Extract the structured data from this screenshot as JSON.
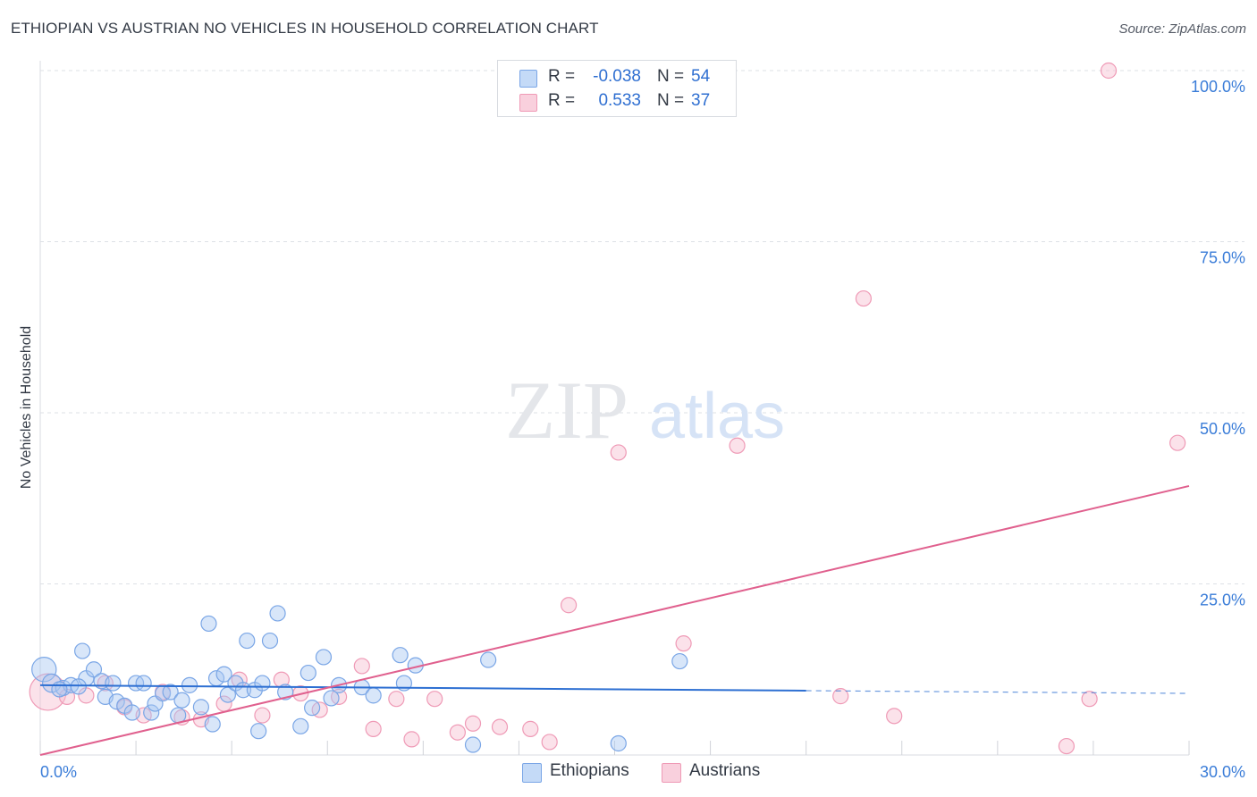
{
  "header": {
    "title": "ETHIOPIAN VS AUSTRIAN NO VEHICLES IN HOUSEHOLD CORRELATION CHART",
    "source": "Source: ZipAtlas.com"
  },
  "watermark": {
    "zip": "ZIP",
    "atlas": "atlas"
  },
  "legend_top": {
    "rows": [
      {
        "r_label": "R =",
        "r_value": "-0.038",
        "n_label": "N =",
        "n_value": "54"
      },
      {
        "r_label": "R =",
        "r_value": "0.533",
        "n_label": "N =",
        "n_value": "37"
      }
    ]
  },
  "legend_bottom": {
    "ethiopians": "Ethiopians",
    "austrians": "Austrians"
  },
  "colors": {
    "blue_fill": "#a9c8f2",
    "blue_stroke": "#7aa6e6",
    "blue_line": "#2d6fd2",
    "pink_fill": "#f6bfd0",
    "pink_stroke": "#ef9ab6",
    "pink_line": "#e0608e",
    "tick_text": "#3b7dd8",
    "grid": "#dde0e6"
  },
  "chart_data": {
    "type": "scatter",
    "title": "ETHIOPIAN VS AUSTRIAN NO VEHICLES IN HOUSEHOLD CORRELATION CHART",
    "xlabel": "",
    "ylabel": "No Vehicles in Household",
    "xlim": [
      0,
      30
    ],
    "ylim": [
      0,
      100
    ],
    "x_tick_labels": [
      "0.0%",
      "30.0%"
    ],
    "y_ticks": [
      25,
      50,
      75,
      100
    ],
    "y_tick_labels": [
      "25.0%",
      "50.0%",
      "75.0%",
      "100.0%"
    ],
    "grid": true,
    "series": [
      {
        "name": "Ethiopians",
        "r": -0.038,
        "n": 54,
        "trend": {
          "x0": 0,
          "y0": 10.2,
          "x1": 20,
          "y1": 9.4,
          "dash_to_x": 30,
          "dash_to_y": 9.0
        },
        "points": [
          [
            0.1,
            12.5,
            1.6
          ],
          [
            0.3,
            10.5,
            1.2
          ],
          [
            0.6,
            9.8,
            1.0
          ],
          [
            0.8,
            10.2,
            1.0
          ],
          [
            1.1,
            15.2,
            1.0
          ],
          [
            1.2,
            11.2,
            1.0
          ],
          [
            1.4,
            12.5,
            1.0
          ],
          [
            1.6,
            10.8,
            1.0
          ],
          [
            1.7,
            8.5,
            1.0
          ],
          [
            1.9,
            10.5,
            1.0
          ],
          [
            2.0,
            7.8,
            1.0
          ],
          [
            2.2,
            7.2,
            1.0
          ],
          [
            2.4,
            6.2,
            1.0
          ],
          [
            2.5,
            10.5,
            1.0
          ],
          [
            2.7,
            10.5,
            1.0
          ],
          [
            2.9,
            6.2,
            1.0
          ],
          [
            3.0,
            7.5,
            1.0
          ],
          [
            3.2,
            9.0,
            1.0
          ],
          [
            3.4,
            9.2,
            1.0
          ],
          [
            3.6,
            5.8,
            1.0
          ],
          [
            3.7,
            8.0,
            1.0
          ],
          [
            3.9,
            10.2,
            1.0
          ],
          [
            4.2,
            7.0,
            1.0
          ],
          [
            4.4,
            19.2,
            1.0
          ],
          [
            4.5,
            4.5,
            1.0
          ],
          [
            4.6,
            11.2,
            1.0
          ],
          [
            4.8,
            11.8,
            1.0
          ],
          [
            4.9,
            8.8,
            1.0
          ],
          [
            5.1,
            10.5,
            1.0
          ],
          [
            5.3,
            9.5,
            1.0
          ],
          [
            5.4,
            16.7,
            1.0
          ],
          [
            5.6,
            9.5,
            1.0
          ],
          [
            5.8,
            10.5,
            1.0
          ],
          [
            5.7,
            3.5,
            1.0
          ],
          [
            6.0,
            16.7,
            1.0
          ],
          [
            6.2,
            20.7,
            1.0
          ],
          [
            6.4,
            9.2,
            1.0
          ],
          [
            6.8,
            4.2,
            1.0
          ],
          [
            7.0,
            12.0,
            1.0
          ],
          [
            7.1,
            6.9,
            1.0
          ],
          [
            7.4,
            14.3,
            1.0
          ],
          [
            7.6,
            8.3,
            1.0
          ],
          [
            7.8,
            10.2,
            1.0
          ],
          [
            8.4,
            9.9,
            1.0
          ],
          [
            8.7,
            8.7,
            1.0
          ],
          [
            9.4,
            14.6,
            1.0
          ],
          [
            9.5,
            10.5,
            1.0
          ],
          [
            9.8,
            13.1,
            1.0
          ],
          [
            11.3,
            1.5,
            1.0
          ],
          [
            11.7,
            13.9,
            1.0
          ],
          [
            15.1,
            1.7,
            1.0
          ],
          [
            16.7,
            13.7,
            1.0
          ],
          [
            0.5,
            9.6,
            1.0
          ],
          [
            1.0,
            10.0,
            1.0
          ]
        ]
      },
      {
        "name": "Austrians",
        "r": 0.533,
        "n": 37,
        "trend": {
          "x0": 0,
          "y0": 0.0,
          "x1": 30,
          "y1": 39.3
        },
        "points": [
          [
            0.2,
            9.2,
            2.4
          ],
          [
            0.7,
            8.5,
            1.0
          ],
          [
            1.2,
            8.7,
            1.0
          ],
          [
            1.7,
            10.5,
            1.0
          ],
          [
            2.2,
            7.0,
            1.0
          ],
          [
            2.7,
            5.8,
            1.0
          ],
          [
            3.2,
            9.2,
            1.0
          ],
          [
            3.7,
            5.5,
            1.0
          ],
          [
            4.2,
            5.2,
            1.0
          ],
          [
            4.8,
            7.5,
            1.0
          ],
          [
            5.2,
            11.0,
            1.0
          ],
          [
            5.8,
            5.8,
            1.0
          ],
          [
            6.3,
            11.0,
            1.0
          ],
          [
            6.8,
            9.0,
            1.0
          ],
          [
            7.3,
            6.6,
            1.0
          ],
          [
            7.8,
            8.5,
            1.0
          ],
          [
            8.4,
            13.0,
            1.0
          ],
          [
            8.7,
            3.8,
            1.0
          ],
          [
            9.3,
            8.2,
            1.0
          ],
          [
            9.7,
            2.3,
            1.0
          ],
          [
            10.3,
            8.2,
            1.0
          ],
          [
            10.9,
            3.3,
            1.0
          ],
          [
            11.3,
            4.6,
            1.0
          ],
          [
            12.0,
            4.1,
            1.0
          ],
          [
            12.8,
            3.8,
            1.0
          ],
          [
            13.3,
            1.9,
            1.0
          ],
          [
            13.8,
            21.9,
            1.0
          ],
          [
            15.1,
            44.2,
            1.0
          ],
          [
            16.8,
            16.3,
            1.0
          ],
          [
            18.2,
            45.2,
            1.0
          ],
          [
            20.9,
            8.6,
            1.0
          ],
          [
            21.5,
            66.7,
            1.0
          ],
          [
            22.3,
            5.7,
            1.0
          ],
          [
            26.8,
            1.3,
            1.0
          ],
          [
            27.4,
            8.2,
            1.0
          ],
          [
            27.9,
            100.0,
            1.0
          ],
          [
            29.7,
            45.6,
            1.0
          ]
        ]
      }
    ]
  }
}
